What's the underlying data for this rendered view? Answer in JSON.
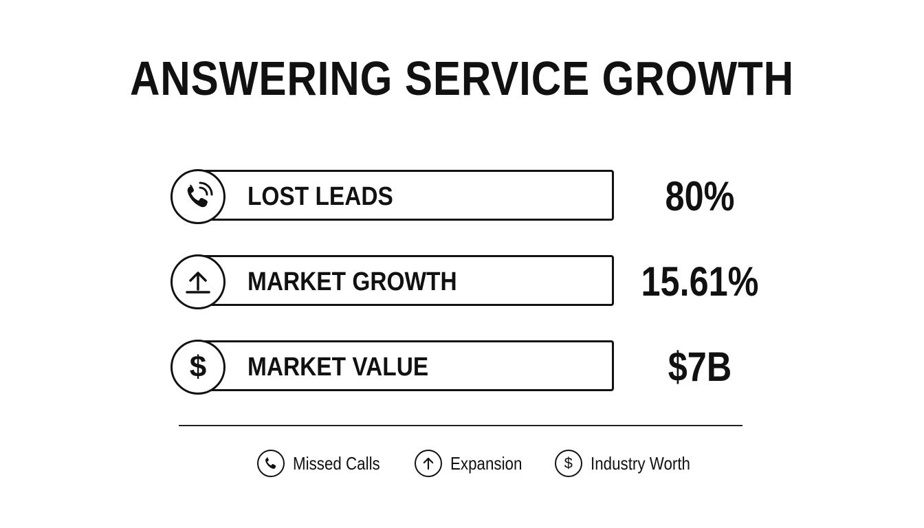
{
  "title": "ANSWERING SERVICE GROWTH",
  "rows": [
    {
      "icon": "phone-icon",
      "label": "LOST LEADS",
      "value": "80%"
    },
    {
      "icon": "upload-arrow-icon",
      "label": "MARKET GROWTH",
      "value": "15.61%"
    },
    {
      "icon": "dollar-icon",
      "icon_glyph": "$",
      "label": "MARKET VALUE",
      "value": "$7B"
    }
  ],
  "legend": [
    {
      "icon": "phone-icon",
      "label": "Missed Calls"
    },
    {
      "icon": "arrow-up-icon",
      "label": "Expansion"
    },
    {
      "icon": "dollar-icon",
      "icon_glyph": "$",
      "label": "Industry Worth"
    }
  ],
  "colors": {
    "ink": "#111111",
    "background": "#ffffff"
  }
}
